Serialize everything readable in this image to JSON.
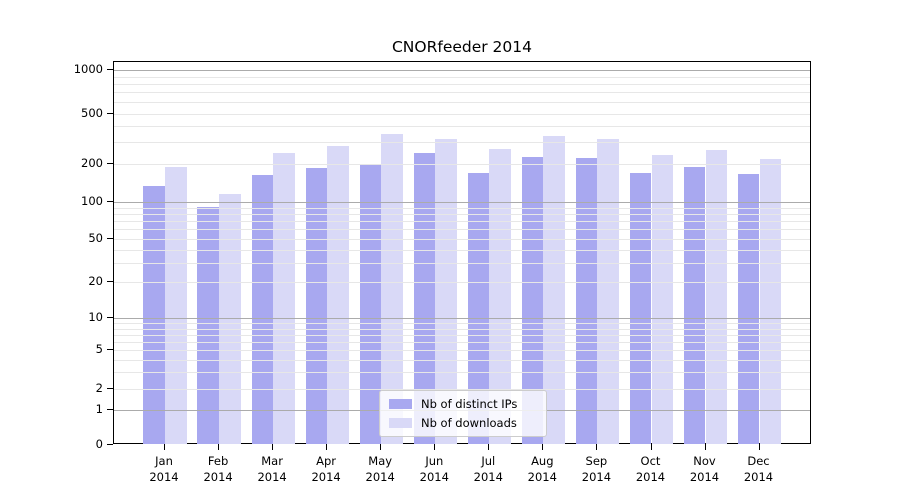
{
  "title": "CNORfeeder 2014",
  "chart_data": {
    "type": "bar",
    "title": "CNORfeeder 2014",
    "categories": [
      "Jan",
      "Feb",
      "Mar",
      "Apr",
      "May",
      "Jun",
      "Jul",
      "Aug",
      "Sep",
      "Oct",
      "Nov",
      "Dec"
    ],
    "category_year": "2014",
    "series": [
      {
        "name": "Nb of distinct IPs",
        "color": "#a8a8f0",
        "values": [
          133,
          91,
          162,
          185,
          199,
          245,
          170,
          226,
          224,
          170,
          188,
          167
        ]
      },
      {
        "name": "Nb of downloads",
        "color": "#d9d9f7",
        "values": [
          190,
          116,
          243,
          274,
          342,
          317,
          263,
          332,
          312,
          236,
          255,
          218
        ]
      }
    ],
    "y_axis": {
      "scale": "log-like (0 baseline)",
      "tick_labels": [
        "0",
        "1",
        "2",
        "5",
        "10",
        "20",
        "50",
        "100",
        "200",
        "500",
        "1000"
      ],
      "tick_values": [
        0,
        1,
        2,
        5,
        10,
        20,
        50,
        100,
        200,
        500,
        1000
      ],
      "major_grid_values": [
        1,
        10,
        100,
        1000
      ],
      "ylim_top": 1070
    },
    "x_axis": {
      "label_line2": "2014"
    },
    "legend": {
      "position": "lower-center",
      "entries": [
        "Nb of distinct IPs",
        "Nb of downloads"
      ]
    },
    "grid": "on (minor + major horizontal lines, drawn over bars)"
  },
  "colors": {
    "distinct_ips_bar": "#a8a8f0",
    "downloads_bar": "#d9d9f7",
    "major_gridline": "#ababab",
    "minor_gridline": "#e7e7e7",
    "axis": "#000000",
    "legend_border": "#cccccc",
    "background": "#ffffff"
  }
}
